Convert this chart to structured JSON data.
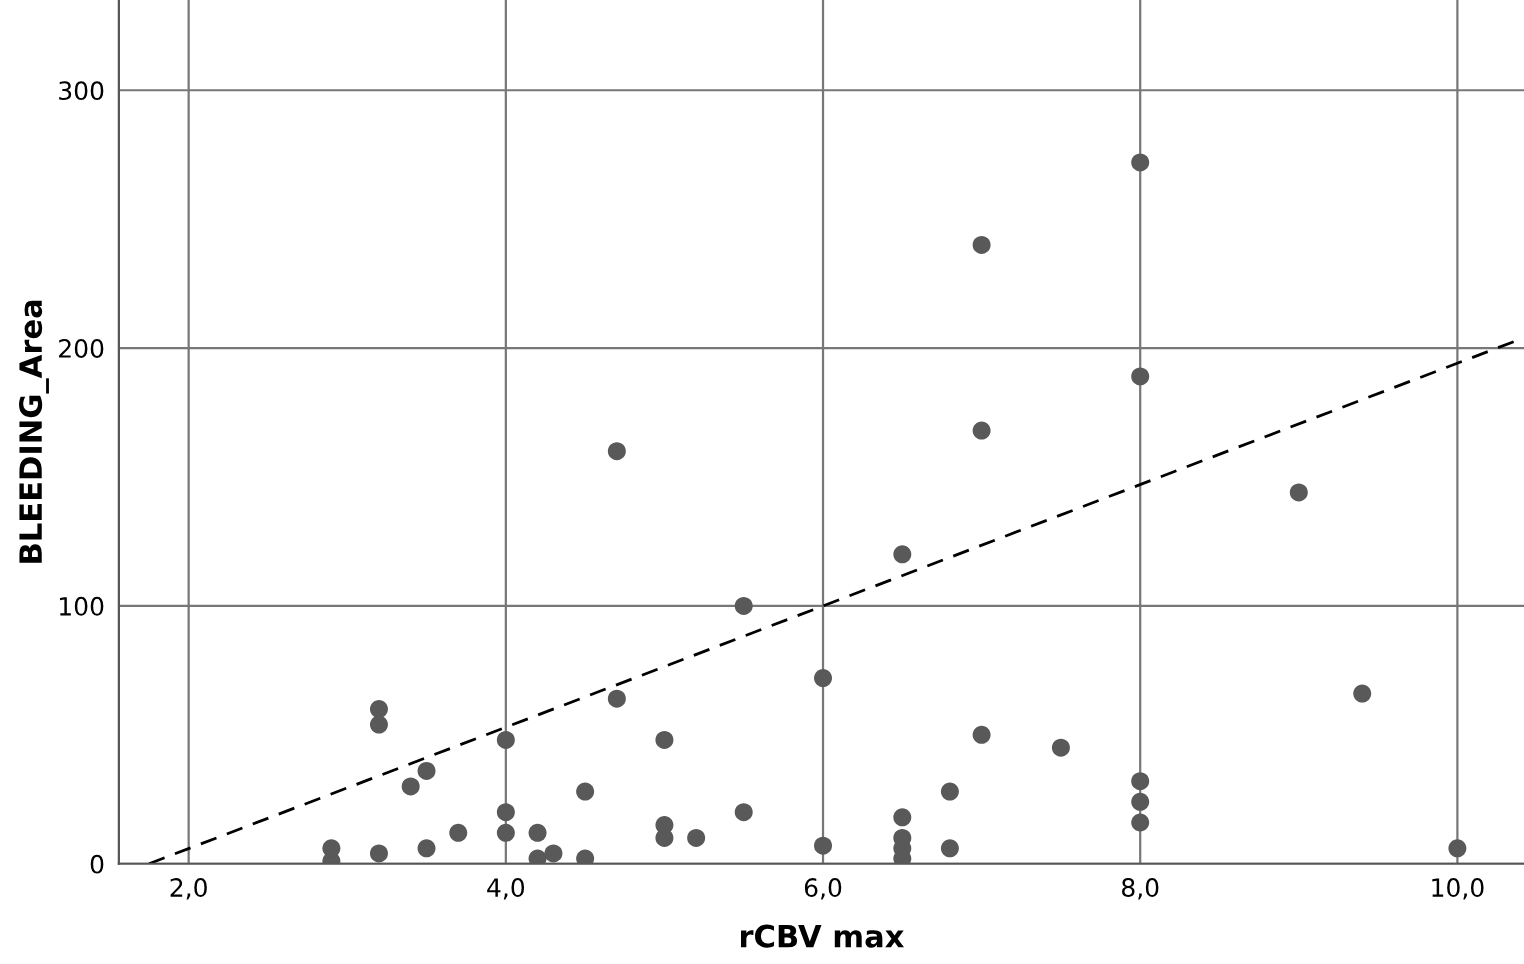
{
  "chart_data": {
    "type": "scatter",
    "xlabel": "rCBV max",
    "ylabel": "BLEEDING_Area",
    "xlim": [
      1.56,
      10.42
    ],
    "ylim": [
      0,
      335
    ],
    "xticks": [
      {
        "value": 2,
        "label": "2,0"
      },
      {
        "value": 4,
        "label": "4,0"
      },
      {
        "value": 6,
        "label": "6,0"
      },
      {
        "value": 8,
        "label": "8,0"
      },
      {
        "value": 10,
        "label": "10,0"
      }
    ],
    "yticks": [
      0,
      100,
      200,
      300
    ],
    "grid": true,
    "marker": "circle",
    "series": [
      {
        "color": "#595959",
        "x": [
          2.9,
          2.9,
          3.2,
          3.2,
          3.2,
          3.4,
          3.5,
          3.5,
          3.7,
          4.0,
          4.0,
          4.0,
          4.2,
          4.2,
          4.3,
          4.5,
          4.5,
          4.7,
          4.7,
          5.0,
          5.0,
          5.0,
          5.2,
          5.5,
          5.5,
          6.0,
          6.0,
          6.5,
          6.5,
          6.5,
          6.5,
          6.5,
          6.8,
          6.8,
          7.0,
          7.0,
          7.0,
          7.5,
          8.0,
          8.0,
          8.0,
          8.0,
          8.0,
          9.0,
          9.4,
          10.0
        ],
        "values": [
          1,
          6,
          60,
          54,
          4,
          30,
          36,
          6,
          12,
          48,
          20,
          12,
          12,
          2,
          4,
          28,
          2,
          160,
          64,
          48,
          15,
          10,
          10,
          100,
          20,
          72,
          7,
          120,
          18,
          10,
          6,
          2,
          28,
          6,
          240,
          168,
          50,
          45,
          272,
          189,
          32,
          24,
          16,
          144,
          66,
          6
        ]
      },
      {
        "type": "line",
        "color": "#000000",
        "line_style": "dashed",
        "marker": "none",
        "x": [
          1.75,
          10.42
        ],
        "values": [
          0,
          204
        ]
      }
    ]
  }
}
